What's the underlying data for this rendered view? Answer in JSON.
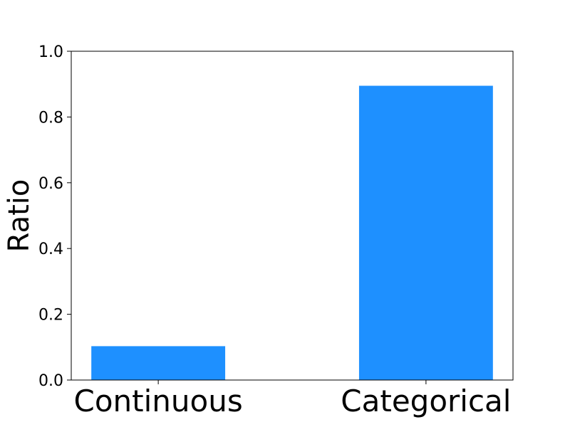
{
  "chart_data": {
    "type": "bar",
    "categories": [
      "Continuous",
      "Categorical"
    ],
    "values": [
      0.103,
      0.895
    ],
    "title": "",
    "xlabel": "",
    "ylabel": "Ratio",
    "ylim": [
      0,
      1.0
    ],
    "yticks": [
      "0.0",
      "0.2",
      "0.4",
      "0.6",
      "0.8",
      "1.0"
    ],
    "grid": false,
    "bar_color": "#1e90ff"
  }
}
